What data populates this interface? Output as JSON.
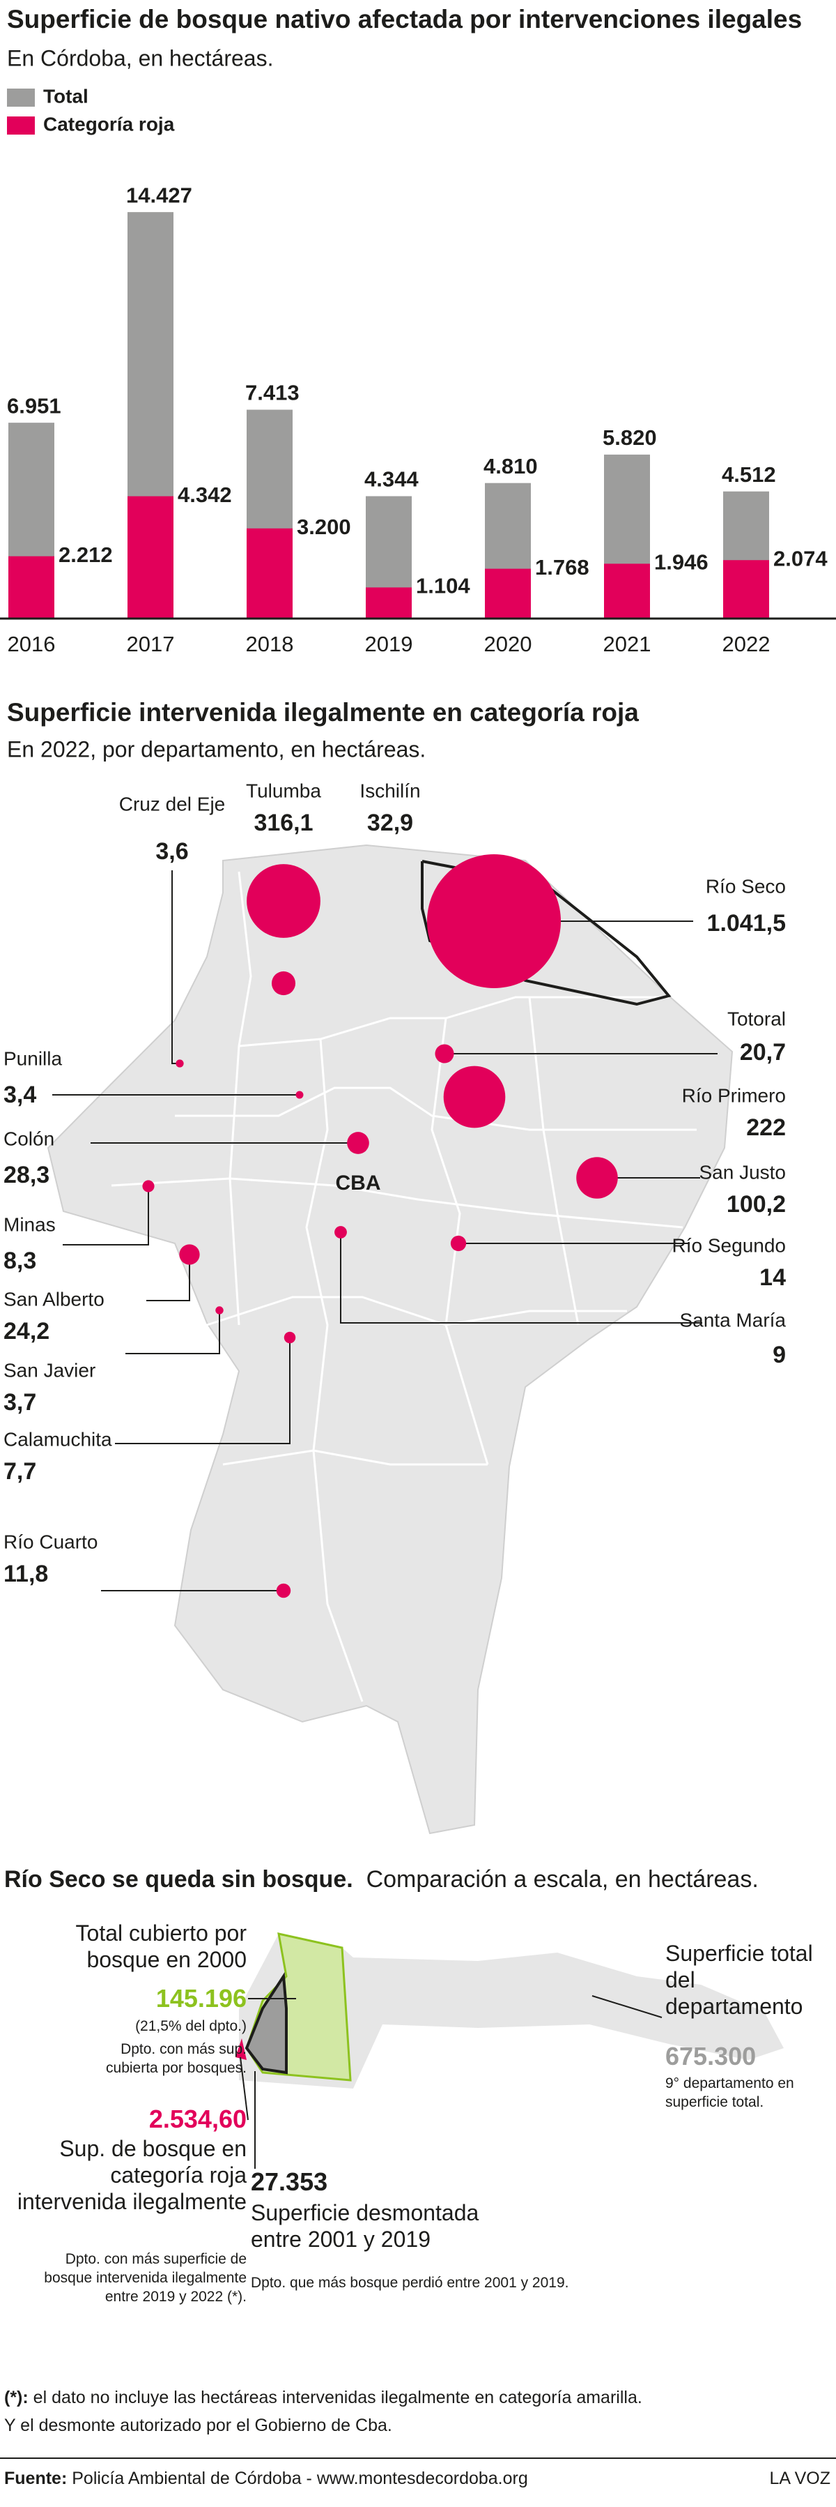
{
  "chart_data": [
    {
      "type": "bar",
      "title": "Superficie de bosque nativo afectada por intervenciones ilegales",
      "subtitle": "En Córdoba, en hectáreas.",
      "categories": [
        "2016",
        "2017",
        "2018",
        "2019",
        "2020",
        "2021",
        "2022"
      ],
      "series": [
        {
          "name": "Total",
          "color": "#9d9d9c",
          "values": [
            6951,
            14427,
            7413,
            4344,
            4810,
            5820,
            4512
          ],
          "value_labels": [
            "6.951",
            "14.427",
            "7.413",
            "4.344",
            "4.810",
            "5.820",
            "4.512"
          ]
        },
        {
          "name": "Categoría roja",
          "color": "#e2005a",
          "values": [
            2212,
            4342,
            3200,
            1104,
            1768,
            1946,
            2074
          ],
          "value_labels": [
            "2.212",
            "4.342",
            "3.200",
            "1.104",
            "1.768",
            "1.946",
            "2.074"
          ]
        }
      ]
    },
    {
      "type": "bubble-map",
      "title": "Superficie intervenida ilegalmente en categoría roja",
      "subtitle": "En 2022, por departamento, en hectáreas.",
      "annotation": "CBA",
      "color": "#e2005a",
      "categories": [
        "Cruz del Eje",
        "Tulumba",
        "Ischilín",
        "Río Seco",
        "Totoral",
        "Río Primero",
        "San Justo",
        "Río Segundo",
        "Santa María",
        "Punilla",
        "Colón",
        "Minas",
        "San Alberto",
        "San Javier",
        "Calamuchita",
        "Río Cuarto"
      ],
      "values": [
        3.6,
        316.1,
        32.9,
        1041.5,
        20.7,
        222,
        100.2,
        14,
        9,
        3.4,
        28.3,
        8.3,
        24.2,
        3.7,
        7.7,
        11.8
      ],
      "value_labels": [
        "3,6",
        "316,1",
        "32,9",
        "1.041,5",
        "20,7",
        "222",
        "100,2",
        "14",
        "9",
        "3,4",
        "28,3",
        "8,3",
        "24,2",
        "3,7",
        "7,7",
        "11,8"
      ]
    }
  ],
  "comparison": {
    "title": "Río Seco se queda sin bosque.",
    "subtitle": "Comparación a escala, en hectáreas.",
    "forest_2000": {
      "label": "Total cubierto por bosque en 2000",
      "value": "145.196",
      "share": "(21,5% del dpto.)",
      "note": "Dpto. con más sup. cubierta por bosques."
    },
    "red_category": {
      "value": "2.534,60",
      "label": "Sup. de bosque en categoría roja intervenida ilegalmente",
      "note": "Dpto. con más superficie de bosque intervenida ilegalmente entre 2019 y 2022 (*)."
    },
    "cleared": {
      "value": "27.353",
      "label": "Superficie desmontada entre 2001 y 2019",
      "note": "Dpto. que más bosque perdió entre 2001 y 2019."
    },
    "total": {
      "label": "Superficie total del departamento",
      "value": "675.300",
      "note": "9° departamento en superficie total."
    }
  },
  "notes": {
    "marker": "(*):",
    "line1": "el dato no incluye las hectáreas intervenidas ilegalmente en categoría amarilla.",
    "line2": "Y el desmonte autorizado por el Gobierno de Cba."
  },
  "footer": {
    "source_label": "Fuente:",
    "source": "Policía Ambiental de Córdoba - www.montesdecordoba.org",
    "brand": "LA VOZ"
  }
}
